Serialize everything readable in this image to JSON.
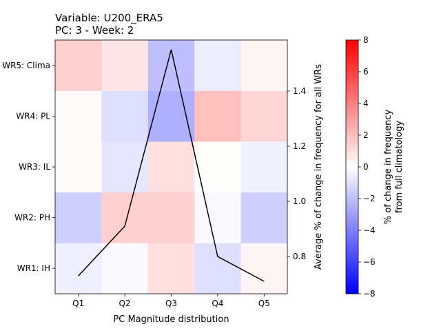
{
  "chart_data": {
    "type": "heatmap",
    "title_line1": "Variable: U200_ERA5",
    "title_line2": "PC: 3 - Week: 2",
    "xlabel": "PC Magnitude distribution",
    "ylabel_right": "Average % of change in frequency for all WRs",
    "colorbar_label_line1": "% of change in frequency",
    "colorbar_label_line2": "from full climatology",
    "x_categories": [
      "Q1",
      "Q2",
      "Q3",
      "Q4",
      "Q5"
    ],
    "y_categories": [
      "WR1: IH",
      "WR2: PH",
      "WR3: IL",
      "WR4: PL",
      "WR5: Clima"
    ],
    "matrix": [
      [
        -0.5,
        -0.2,
        1.0,
        -1.0,
        0.3
      ],
      [
        -1.5,
        1.5,
        1.5,
        -0.2,
        -1.5
      ],
      [
        0.2,
        -0.8,
        1.0,
        0.1,
        -0.4
      ],
      [
        0.2,
        -1.0,
        -2.5,
        2.0,
        1.3
      ],
      [
        1.5,
        0.8,
        -2.0,
        -0.6,
        0.3
      ]
    ],
    "color_scale": {
      "min": -8,
      "max": 8,
      "cmap": "bwr",
      "low_color": "#0000ff",
      "mid_color": "#ffffff",
      "high_color": "#ff0000"
    },
    "colorbar_ticks": [
      -8,
      -6,
      -4,
      -2,
      0,
      2,
      4,
      6,
      8
    ],
    "line_series": {
      "x": [
        "Q1",
        "Q2",
        "Q3",
        "Q4",
        "Q5"
      ],
      "values": [
        0.73,
        0.91,
        1.55,
        0.8,
        0.71
      ],
      "color": "#000000"
    },
    "right_axis": {
      "ylim": [
        0.665,
        1.585
      ],
      "ticks": [
        0.8,
        1.0,
        1.2,
        1.4
      ]
    }
  }
}
